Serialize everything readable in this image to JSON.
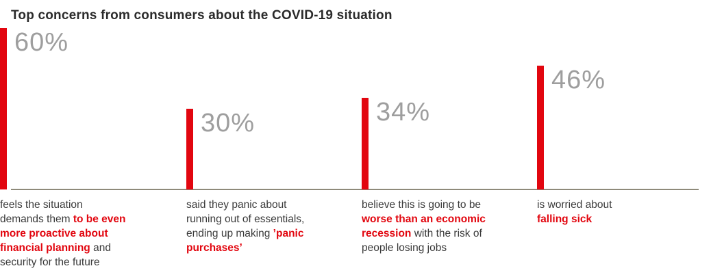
{
  "title": "Top concerns from consumers about the COVID-19 situation",
  "chart_data": {
    "type": "bar",
    "title": "Top concerns from consumers about the COVID-19 situation",
    "categories": [
      "panic purchases",
      "worse than an economic recession",
      "falling sick",
      "proactive about financial planning"
    ],
    "values": [
      30,
      34,
      46,
      60
    ],
    "value_labels": [
      "30%",
      "34%",
      "46%",
      "60%"
    ],
    "unit": "%",
    "xlabel": "",
    "ylabel": "",
    "ylim": [
      0,
      60
    ],
    "grid": false,
    "legend": "none",
    "bar_color": "#e2060f",
    "orientation": "vertical"
  },
  "columns": [
    {
      "value": 30,
      "percent_label": "30%",
      "description": [
        {
          "text": "said they panic about"
        },
        {
          "br": true
        },
        {
          "text": "running out of essentials,"
        },
        {
          "br": true
        },
        {
          "text": "ending up making "
        },
        {
          "text": "’panic",
          "highlight": true
        },
        {
          "br": true
        },
        {
          "text": "purchases’",
          "highlight": true
        }
      ]
    },
    {
      "value": 34,
      "percent_label": "34%",
      "description": [
        {
          "text": "believe this is going to be"
        },
        {
          "br": true
        },
        {
          "text": "worse than an economic",
          "highlight": true
        },
        {
          "br": true
        },
        {
          "text": "recession",
          "highlight": true
        },
        {
          "text": " with the risk of"
        },
        {
          "br": true
        },
        {
          "text": "people losing jobs"
        }
      ]
    },
    {
      "value": 46,
      "percent_label": "46%",
      "description": [
        {
          "text": "is worried about"
        },
        {
          "br": true
        },
        {
          "text": "falling sick",
          "highlight": true
        }
      ]
    },
    {
      "value": 60,
      "percent_label": "60%",
      "description": [
        {
          "text": "feels the situation"
        },
        {
          "br": true
        },
        {
          "text": "demands them "
        },
        {
          "text": "to be even",
          "highlight": true
        },
        {
          "br": true
        },
        {
          "text": "more proactive about",
          "highlight": true
        },
        {
          "br": true
        },
        {
          "text": "financial planning",
          "highlight": true
        },
        {
          "text": " and"
        },
        {
          "br": true
        },
        {
          "text": "security for the future"
        }
      ]
    }
  ],
  "colors": {
    "bar": "#e2060f",
    "highlight_text": "#e2060f",
    "percent_label": "#9e9e9e",
    "baseline": "#8e8a7a",
    "body_text": "#3a3a3a",
    "title_text": "#2b2b2b"
  }
}
